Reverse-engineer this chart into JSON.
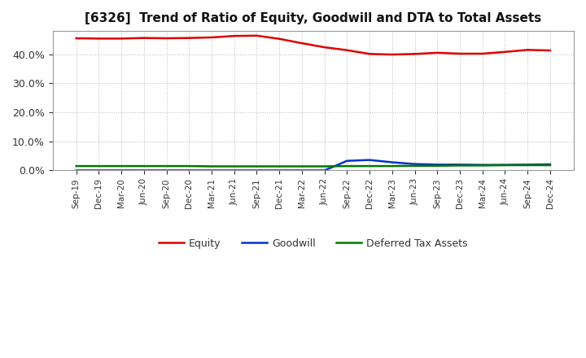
{
  "title": "[6326]  Trend of Ratio of Equity, Goodwill and DTA to Total Assets",
  "x_labels": [
    "Sep-19",
    "Dec-19",
    "Mar-20",
    "Jun-20",
    "Sep-20",
    "Dec-20",
    "Mar-21",
    "Jun-21",
    "Sep-21",
    "Dec-21",
    "Mar-22",
    "Jun-22",
    "Sep-22",
    "Dec-22",
    "Mar-23",
    "Jun-23",
    "Sep-23",
    "Dec-23",
    "Mar-24",
    "Jun-24",
    "Sep-24",
    "Dec-24"
  ],
  "equity": [
    0.455,
    0.454,
    0.454,
    0.456,
    0.455,
    0.456,
    0.458,
    0.463,
    0.464,
    0.453,
    0.438,
    0.424,
    0.414,
    0.401,
    0.399,
    0.401,
    0.405,
    0.402,
    0.402,
    0.408,
    0.415,
    0.413
  ],
  "goodwill": [
    0.0,
    0.0,
    0.0,
    0.0,
    0.0,
    0.0,
    0.0,
    0.0,
    0.0,
    0.0,
    0.0,
    0.0,
    0.033,
    0.036,
    0.028,
    0.022,
    0.02,
    0.02,
    0.019,
    0.019,
    0.02,
    0.021
  ],
  "dta": [
    0.015,
    0.015,
    0.015,
    0.015,
    0.015,
    0.015,
    0.014,
    0.014,
    0.014,
    0.014,
    0.014,
    0.014,
    0.015,
    0.015,
    0.015,
    0.016,
    0.016,
    0.017,
    0.017,
    0.018,
    0.018,
    0.018
  ],
  "equity_color": "#dd0000",
  "goodwill_color": "#0033cc",
  "dta_color": "#007700",
  "background_color": "#ffffff",
  "grid_color": "#aaaaaa",
  "legend_labels": [
    "Equity",
    "Goodwill",
    "Deferred Tax Assets"
  ],
  "ylim": [
    0.0,
    0.48
  ],
  "yticks": [
    0.0,
    0.1,
    0.2,
    0.3,
    0.4
  ]
}
